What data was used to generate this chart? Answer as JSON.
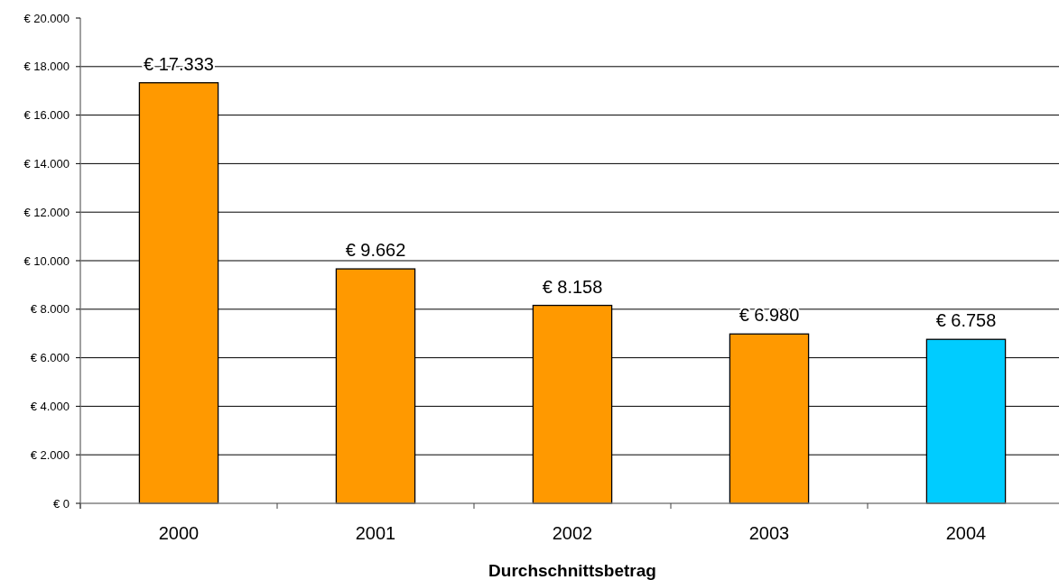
{
  "chart_data": {
    "type": "bar",
    "xlabel": "Durchschnittsbetrag",
    "categories": [
      "2000",
      "2001",
      "2002",
      "2003",
      "2004"
    ],
    "values": [
      17333,
      9662,
      8158,
      6980,
      6758
    ],
    "colors": [
      "#ff9900",
      "#ff9900",
      "#ff9900",
      "#ff9900",
      "#00ccff"
    ],
    "value_labels": [
      "€ 17.333",
      "€ 9.662",
      "€ 8.158",
      "€ 6.980",
      "€ 6.758"
    ],
    "ylim": [
      0,
      20000
    ],
    "yticks": [
      {
        "value": 0,
        "label": "€ 0"
      },
      {
        "value": 2000,
        "label": "€ 2.000"
      },
      {
        "value": 4000,
        "label": "€ 4.000"
      },
      {
        "value": 6000,
        "label": "€ 6.000"
      },
      {
        "value": 8000,
        "label": "€ 8.000"
      },
      {
        "value": 10000,
        "label": "€ 10.000"
      },
      {
        "value": 12000,
        "label": "€ 12.000"
      },
      {
        "value": 14000,
        "label": "€ 14.000"
      },
      {
        "value": 16000,
        "label": "€ 16.000"
      },
      {
        "value": 18000,
        "label": "€ 18.000"
      },
      {
        "value": 20000,
        "label": "€ 20.000"
      }
    ],
    "grid": "y"
  }
}
